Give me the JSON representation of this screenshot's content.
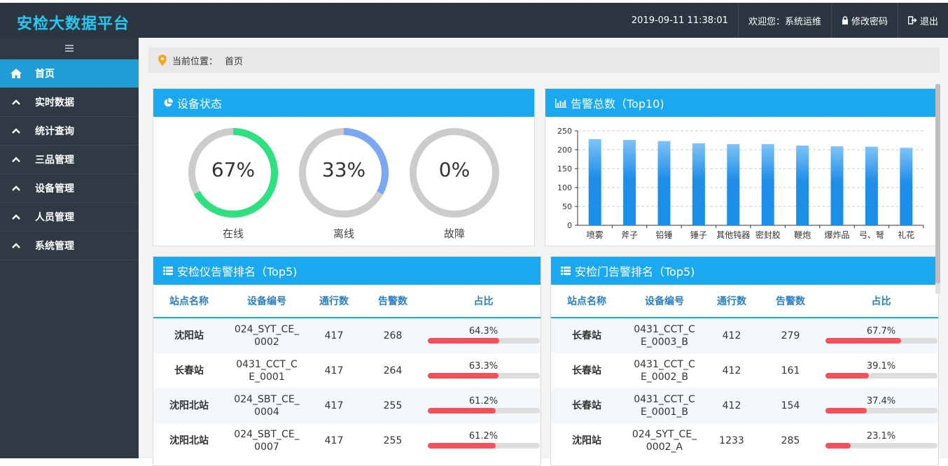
{
  "header": {
    "brand": "安检大数据平台",
    "datetime": "2019-09-11 11:38:01",
    "welcome": "欢迎您：系统运维",
    "change_password": "修改密码",
    "logout": "退出"
  },
  "sidebar": {
    "items": [
      {
        "label": "首页",
        "icon": "home-icon",
        "active": true
      },
      {
        "label": "实时数据",
        "icon": "chevron-up-icon"
      },
      {
        "label": "统计查询",
        "icon": "chevron-up-icon"
      },
      {
        "label": "三品管理",
        "icon": "chevron-up-icon"
      },
      {
        "label": "设备管理",
        "icon": "chevron-up-icon"
      },
      {
        "label": "人员管理",
        "icon": "chevron-up-icon"
      },
      {
        "label": "系统管理",
        "icon": "chevron-up-icon"
      }
    ]
  },
  "breadcrumb": {
    "prefix": "当前位置：",
    "current": "首页"
  },
  "device_status": {
    "title": "设备状态",
    "gauges": [
      {
        "label": "在线",
        "percent_text": "67%",
        "value": 0.67,
        "color": "#2ee07f"
      },
      {
        "label": "离线",
        "percent_text": "33%",
        "value": 0.33,
        "color": "#7aa8f5"
      },
      {
        "label": "故障",
        "percent_text": "0%",
        "value": 0,
        "color": "#2ee07f"
      }
    ]
  },
  "alarm_chart": {
    "title": "告警总数（Top10)"
  },
  "chart_data": {
    "type": "bar",
    "categories": [
      "喷雾",
      "斧子",
      "铅锤",
      "锤子",
      "其他钝器",
      "密封胶",
      "鞭炮",
      "爆炸品",
      "弓、弩",
      "礼花"
    ],
    "values": [
      228,
      226,
      223,
      217,
      215,
      215,
      211,
      209,
      208,
      205
    ],
    "ylim": [
      0,
      250
    ],
    "yticks": [
      "0",
      "50",
      "100",
      "150",
      "200",
      "250"
    ],
    "grid": true,
    "color": "#1a8fe8"
  },
  "scanner_rank": {
    "title": "安检仪告警排名（Top5)",
    "headers": [
      "站点名称",
      "设备编号",
      "通行数",
      "告警数",
      "占比"
    ],
    "rows": [
      {
        "station": "沈阳站",
        "device": "024_SYT_CE_\n0002",
        "traffic": "417",
        "alarms": "268",
        "ratio_text": "64.3%",
        "ratio": 0.643
      },
      {
        "station": "长春站",
        "device": "0431_CCT_C\nE_0001",
        "traffic": "417",
        "alarms": "264",
        "ratio_text": "63.3%",
        "ratio": 0.633
      },
      {
        "station": "沈阳北站",
        "device": "024_SBT_CE_\n0004",
        "traffic": "417",
        "alarms": "255",
        "ratio_text": "61.2%",
        "ratio": 0.612
      },
      {
        "station": "沈阳北站",
        "device": "024_SBT_CE_\n0007",
        "traffic": "417",
        "alarms": "255",
        "ratio_text": "61.2%",
        "ratio": 0.612
      }
    ]
  },
  "gate_rank": {
    "title": "安检门告警排名（Top5)",
    "headers": [
      "站点名称",
      "设备编号",
      "通行数",
      "告警数",
      "占比"
    ],
    "rows": [
      {
        "station": "长春站",
        "device": "0431_CCT_C\nE_0003_B",
        "traffic": "412",
        "alarms": "279",
        "ratio_text": "67.7%",
        "ratio": 0.677
      },
      {
        "station": "长春站",
        "device": "0431_CCT_C\nE_0002_B",
        "traffic": "412",
        "alarms": "161",
        "ratio_text": "39.1%",
        "ratio": 0.391
      },
      {
        "station": "长春站",
        "device": "0431_CCT_C\nE_0001_B",
        "traffic": "412",
        "alarms": "154",
        "ratio_text": "37.4%",
        "ratio": 0.374
      },
      {
        "station": "沈阳站",
        "device": "024_SYT_CE_\n0002_A",
        "traffic": "1233",
        "alarms": "285",
        "ratio_text": "23.1%",
        "ratio": 0.231
      }
    ]
  }
}
